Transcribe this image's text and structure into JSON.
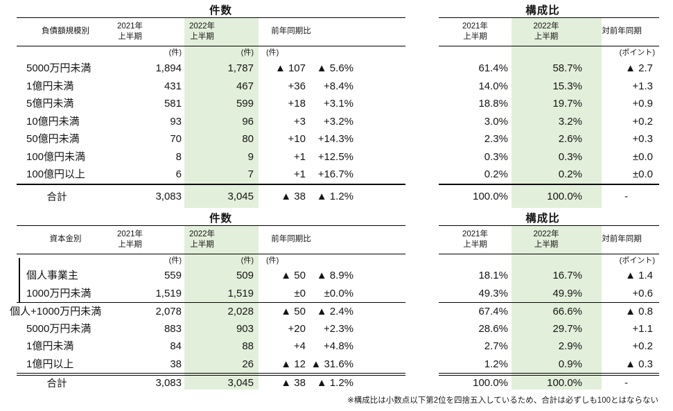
{
  "colors": {
    "highlight": "#e2efda",
    "line": "#000000",
    "text": "#141414"
  },
  "titles": {
    "count": "件数",
    "ratio": "構成比"
  },
  "headers": {
    "period_2021_l1": "2021年",
    "period_2021_l2": "上半期",
    "period_2022_l1": "2022年",
    "period_2022_l2": "上半期",
    "yoy": "前年同期比",
    "vs_prev_year": "対前年同期",
    "unit_cases": "(件)",
    "unit_points": "(ポイント)"
  },
  "table1": {
    "category_header": "負債額規模別",
    "total_label": "合計",
    "rows": [
      {
        "label": "5000万円未満",
        "c2021": "1,894",
        "c2022": "1,787",
        "diff": "▲ 107",
        "pct": "▲ 5.6%",
        "r2021": "61.4%",
        "r2022": "58.7%",
        "pts": "▲ 2.7"
      },
      {
        "label": "1億円未満",
        "c2021": "431",
        "c2022": "467",
        "diff": "+36",
        "pct": "+8.4%",
        "r2021": "14.0%",
        "r2022": "15.3%",
        "pts": "+1.3"
      },
      {
        "label": "5億円未満",
        "c2021": "581",
        "c2022": "599",
        "diff": "+18",
        "pct": "+3.1%",
        "r2021": "18.8%",
        "r2022": "19.7%",
        "pts": "+0.9"
      },
      {
        "label": "10億円未満",
        "c2021": "93",
        "c2022": "96",
        "diff": "+3",
        "pct": "+3.2%",
        "r2021": "3.0%",
        "r2022": "3.2%",
        "pts": "+0.2"
      },
      {
        "label": "50億円未満",
        "c2021": "70",
        "c2022": "80",
        "diff": "+10",
        "pct": "+14.3%",
        "r2021": "2.3%",
        "r2022": "2.6%",
        "pts": "+0.3"
      },
      {
        "label": "100億円未満",
        "c2021": "8",
        "c2022": "9",
        "diff": "+1",
        "pct": "+12.5%",
        "r2021": "0.3%",
        "r2022": "0.3%",
        "pts": "±0.0"
      },
      {
        "label": "100億円以上",
        "c2021": "6",
        "c2022": "7",
        "diff": "+1",
        "pct": "+16.7%",
        "r2021": "0.2%",
        "r2022": "0.2%",
        "pts": "±0.0"
      }
    ],
    "total": {
      "c2021": "3,083",
      "c2022": "3,045",
      "diff": "▲ 38",
      "pct": "▲ 1.2%",
      "r2021": "100.0%",
      "r2022": "100.0%",
      "pts": "-"
    }
  },
  "table2": {
    "category_header": "資本金別",
    "total_label": "合計",
    "rows": [
      {
        "cls": "bracket",
        "label": "個人事業主",
        "c2021": "559",
        "c2022": "509",
        "diff": "▲ 50",
        "pct": "▲ 8.9%",
        "r2021": "18.1%",
        "r2022": "16.7%",
        "pts": "▲ 1.4"
      },
      {
        "cls": "bracket",
        "label": "1000万円未満",
        "c2021": "1,519",
        "c2022": "1,519",
        "diff": "±0",
        "pct": "±0.0%",
        "r2021": "49.3%",
        "r2022": "49.9%",
        "pts": "+0.6"
      },
      {
        "cls": "flush divider",
        "label": "個人+1000万円未満",
        "c2021": "2,078",
        "c2022": "2,028",
        "diff": "▲ 50",
        "pct": "▲ 2.4%",
        "r2021": "67.4%",
        "r2022": "66.6%",
        "pts": "▲ 0.8"
      },
      {
        "label": "5000万円未満",
        "c2021": "883",
        "c2022": "903",
        "diff": "+20",
        "pct": "+2.3%",
        "r2021": "28.6%",
        "r2022": "29.7%",
        "pts": "+1.1"
      },
      {
        "label": "1億円未満",
        "c2021": "84",
        "c2022": "88",
        "diff": "+4",
        "pct": "+4.8%",
        "r2021": "2.7%",
        "r2022": "2.9%",
        "pts": "+0.2"
      },
      {
        "label": "1億円以上",
        "c2021": "38",
        "c2022": "26",
        "diff": "▲ 12",
        "pct": "▲ 31.6%",
        "r2021": "1.2%",
        "r2022": "0.9%",
        "pts": "▲ 0.3"
      }
    ],
    "total": {
      "c2021": "3,083",
      "c2022": "3,045",
      "diff": "▲ 38",
      "pct": "▲ 1.2%",
      "r2021": "100.0%",
      "r2022": "100.0%",
      "pts": "-"
    }
  },
  "footnote": "※構成比は小数点以下第2位を四捨五入しているため、合計は必ずしも100とはならない"
}
